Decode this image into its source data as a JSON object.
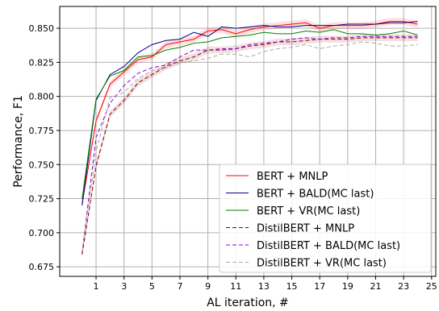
{
  "chart_data": {
    "type": "line",
    "xlabel": "AL iteration, #",
    "ylabel": "Performance, F1",
    "xlim": [
      -1.6,
      25.3
    ],
    "ylim": [
      0.668,
      0.866
    ],
    "xticks": [
      1,
      3,
      5,
      7,
      9,
      11,
      13,
      15,
      17,
      19,
      21,
      23,
      25
    ],
    "yticks": [
      0.675,
      0.7,
      0.725,
      0.75,
      0.775,
      0.8,
      0.825,
      0.85
    ],
    "ytick_labels": [
      "0.675",
      "0.700",
      "0.725",
      "0.750",
      "0.775",
      "0.800",
      "0.825",
      "0.850"
    ],
    "grid": true,
    "legend_position": "bottom-right",
    "x": [
      0,
      1,
      2,
      3,
      4,
      5,
      6,
      7,
      8,
      9,
      10,
      11,
      12,
      13,
      14,
      15,
      16,
      17,
      18,
      19,
      20,
      21,
      22,
      23,
      24
    ],
    "series": [
      {
        "name": "BERT + MNLP",
        "color": "#ff0000",
        "dash": "solid",
        "band": true,
        "values": [
          0.721,
          0.782,
          0.809,
          0.818,
          0.827,
          0.829,
          0.838,
          0.84,
          0.842,
          0.848,
          0.849,
          0.846,
          0.849,
          0.851,
          0.852,
          0.853,
          0.854,
          0.85,
          0.852,
          0.852,
          0.852,
          0.853,
          0.855,
          0.855,
          0.853
        ]
      },
      {
        "name": "BERT + BALD(MC last)",
        "color": "#00008b",
        "dash": "solid",
        "band": false,
        "values": [
          0.72,
          0.797,
          0.816,
          0.822,
          0.832,
          0.838,
          0.841,
          0.842,
          0.847,
          0.844,
          0.851,
          0.85,
          0.851,
          0.852,
          0.851,
          0.851,
          0.852,
          0.852,
          0.852,
          0.853,
          0.853,
          0.853,
          0.854,
          0.854,
          0.855
        ]
      },
      {
        "name": "BERT + VR(MC last)",
        "color": "#008000",
        "dash": "solid",
        "band": false,
        "values": [
          0.725,
          0.798,
          0.815,
          0.819,
          0.829,
          0.83,
          0.834,
          0.836,
          0.839,
          0.84,
          0.843,
          0.844,
          0.845,
          0.847,
          0.846,
          0.846,
          0.848,
          0.847,
          0.849,
          0.846,
          0.846,
          0.845,
          0.846,
          0.848,
          0.845
        ]
      },
      {
        "name": "DistilBERT + MNLP",
        "color": "#8b0000",
        "dash": "dashed",
        "band": true,
        "values": [
          0.684,
          0.749,
          0.787,
          0.797,
          0.81,
          0.816,
          0.822,
          0.826,
          0.829,
          0.834,
          0.834,
          0.835,
          0.837,
          0.838,
          0.84,
          0.84,
          0.841,
          0.842,
          0.842,
          0.842,
          0.843,
          0.843,
          0.843,
          0.843,
          0.843
        ]
      },
      {
        "name": "DistilBERT + BALD(MC last)",
        "color": "#9400d3",
        "dash": "dashed",
        "band": false,
        "values": [
          0.685,
          0.77,
          0.795,
          0.808,
          0.817,
          0.821,
          0.823,
          0.829,
          0.834,
          0.834,
          0.835,
          0.835,
          0.838,
          0.839,
          0.84,
          0.842,
          0.843,
          0.842,
          0.843,
          0.843,
          0.844,
          0.844,
          0.844,
          0.844,
          0.844
        ]
      },
      {
        "name": "DistilBERT + VR(MC last)",
        "color": "#a9a9a9",
        "dash": "dashed",
        "band": false,
        "values": [
          0.686,
          0.76,
          0.799,
          0.803,
          0.813,
          0.819,
          0.821,
          0.825,
          0.826,
          0.828,
          0.831,
          0.831,
          0.829,
          0.833,
          0.835,
          0.836,
          0.838,
          0.835,
          0.837,
          0.838,
          0.84,
          0.839,
          0.837,
          0.837,
          0.838
        ]
      }
    ]
  }
}
